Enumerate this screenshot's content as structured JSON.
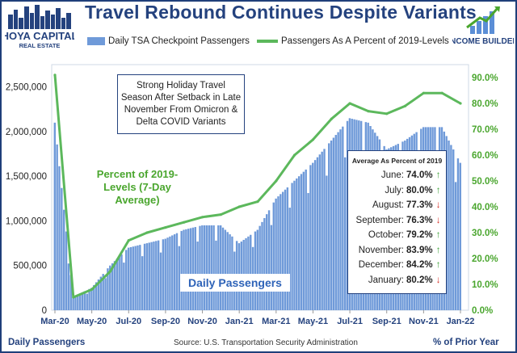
{
  "title": "Travel Rebound Continues Despite Variants",
  "logo_left": {
    "line1": "HOYA CAPITAL",
    "line2": "REAL ESTATE"
  },
  "logo_right": {
    "text": "INCOME BUILDER"
  },
  "colors": {
    "bars": "#6f9ad9",
    "line": "#5cb85c",
    "title": "#24427e",
    "green_text": "#4aa62e",
    "up": "#3fa33a",
    "down": "#d6332b"
  },
  "annotation": "Strong Holiday Travel Season After Setback in Late November From Omicron & Delta COVID Variants",
  "green_label": "Percent of 2019-Levels (7-Day Average)",
  "bars_label": "Daily Passengers",
  "average_table": {
    "title": "Average As Percent of 2019",
    "rows": [
      {
        "month": "June:",
        "value": "74.0%",
        "dir": "up"
      },
      {
        "month": "July:",
        "value": "80.0%",
        "dir": "up"
      },
      {
        "month": "August:",
        "value": "77.3%",
        "dir": "down"
      },
      {
        "month": "September:",
        "value": "76.3%",
        "dir": "down"
      },
      {
        "month": "October:",
        "value": "79.2%",
        "dir": "up"
      },
      {
        "month": "November:",
        "value": "83.9%",
        "dir": "up"
      },
      {
        "month": "December:",
        "value": "84.2%",
        "dir": "up"
      },
      {
        "month": "January:",
        "value": "80.2%",
        "dir": "down"
      }
    ]
  },
  "footer": {
    "left": "Daily Passengers",
    "source": "Source: U.S. Transportation Security Administration",
    "right": "% of Prior Year"
  },
  "chart_data": {
    "type": "bar",
    "series": [
      {
        "name": "Daily TSA Checkpoint Passengers",
        "type": "bar",
        "axis": "left",
        "x": [
          "Mar-20",
          "Apr-20",
          "May-20",
          "Jun-20",
          "Jul-20",
          "Aug-20",
          "Sep-20",
          "Oct-20",
          "Nov-20",
          "Dec-20",
          "Jan-21",
          "Feb-21",
          "Mar-21",
          "Apr-21",
          "May-21",
          "Jun-21",
          "Jul-21",
          "Aug-21",
          "Sep-21",
          "Oct-21",
          "Nov-21",
          "Dec-21",
          "Jan-22"
        ],
        "values": [
          2100000,
          150000,
          250000,
          500000,
          700000,
          750000,
          800000,
          900000,
          950000,
          950000,
          750000,
          900000,
          1250000,
          1450000,
          1650000,
          1900000,
          2150000,
          2100000,
          1800000,
          1900000,
          2050000,
          2050000,
          1650000
        ]
      },
      {
        "name": "Passengers As A Percent of 2019-Levels",
        "type": "line",
        "axis": "right",
        "x": [
          "Mar-20",
          "Apr-20",
          "May-20",
          "Jun-20",
          "Jul-20",
          "Aug-20",
          "Sep-20",
          "Oct-20",
          "Nov-20",
          "Dec-20",
          "Jan-21",
          "Feb-21",
          "Mar-21",
          "Apr-21",
          "May-21",
          "Jun-21",
          "Jul-21",
          "Aug-21",
          "Sep-21",
          "Oct-21",
          "Nov-21",
          "Dec-21",
          "Jan-22"
        ],
        "values": [
          91,
          5,
          8,
          15,
          27,
          30,
          32,
          34,
          36,
          37,
          40,
          42,
          50,
          60,
          66,
          74,
          80,
          77,
          76,
          79,
          84,
          84,
          80
        ]
      }
    ],
    "x_ticks": [
      "Mar-20",
      "May-20",
      "Jul-20",
      "Sep-20",
      "Nov-20",
      "Jan-21",
      "Mar-21",
      "May-21",
      "Jul-21",
      "Sep-21",
      "Nov-21",
      "Jan-22"
    ],
    "y_left": {
      "ticks": [
        "0",
        "500,000",
        "1,000,000",
        "1,500,000",
        "2,000,000",
        "2,500,000"
      ],
      "range": [
        0,
        2750000
      ]
    },
    "y_right": {
      "ticks": [
        "0.0%",
        "10.0%",
        "20.0%",
        "30.0%",
        "40.0%",
        "50.0%",
        "60.0%",
        "70.0%",
        "80.0%",
        "90.0%"
      ],
      "range": [
        0,
        95
      ]
    },
    "legend_position": "top"
  }
}
